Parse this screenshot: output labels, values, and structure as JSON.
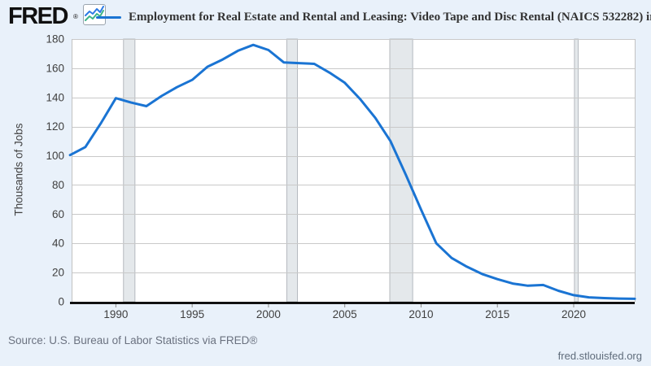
{
  "header": {
    "logo_text": "FRED",
    "registered_mark": "®",
    "series_title": "Employment for Real Estate and Rental and Leasing: Video Tape and Disc Rental (NAICS 532282) in the United States"
  },
  "chart_data": {
    "type": "line",
    "title": "Employment for Real Estate and Rental and Leasing: Video Tape and Disc Rental (NAICS 532282) in the United States",
    "xlabel": "",
    "ylabel": "Thousands of Jobs",
    "x": [
      1987,
      1988,
      1989,
      1990,
      1991,
      1992,
      1993,
      1994,
      1995,
      1996,
      1997,
      1998,
      1999,
      2000,
      2001,
      2002,
      2003,
      2004,
      2005,
      2006,
      2007,
      2008,
      2009,
      2010,
      2011,
      2012,
      2013,
      2014,
      2015,
      2016,
      2017,
      2018,
      2019,
      2020,
      2021,
      2022,
      2023,
      2024
    ],
    "values": [
      100.5,
      106,
      122,
      139.5,
      136.5,
      134,
      141,
      147,
      152,
      161,
      166,
      172,
      176,
      172.5,
      164,
      163.5,
      163,
      157,
      150,
      139,
      126,
      110,
      87,
      63,
      40,
      30,
      24,
      19,
      15.5,
      12.5,
      11,
      11.5,
      7.5,
      4.5,
      3,
      2.5,
      2.2,
      2
    ],
    "xlim": [
      1987.1,
      2024
    ],
    "ylim": [
      0,
      180
    ],
    "x_ticks": [
      1990,
      1995,
      2000,
      2005,
      2010,
      2015,
      2020
    ],
    "y_ticks": [
      0,
      20,
      40,
      60,
      80,
      100,
      120,
      140,
      160,
      180
    ],
    "recession_bands": [
      [
        1990.5,
        1991.25
      ],
      [
        2001.2,
        2001.9
      ],
      [
        2007.95,
        2009.45
      ],
      [
        2020.05,
        2020.3
      ]
    ],
    "grid": true,
    "legend_position": "top-left",
    "line_color": "#1a74d3",
    "plot_bg": "#ffffff",
    "band_fill": "#e4e8eb",
    "band_edge": "#b4b9be",
    "grid_color": "#c9c9c9",
    "tick_label_color": "#3f3f3f",
    "axis_color": "#000000"
  },
  "footer": {
    "source": "Source: U.S. Bureau of Labor Statistics via FRED®",
    "site": "fred.stlouisfed.org"
  }
}
